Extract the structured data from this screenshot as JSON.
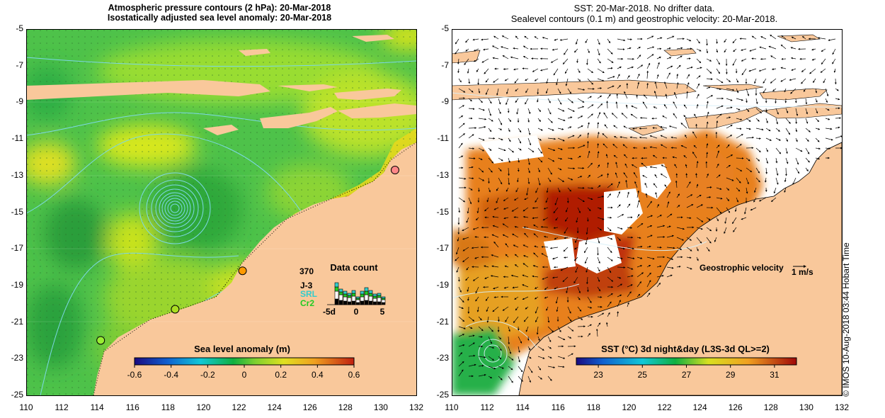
{
  "left_panel": {
    "title_line1": "Atmospheric pressure contours (2 hPa): 20-Mar-2018",
    "title_line2": "Isostatically adjusted sea level anomaly: 20-Mar-2018",
    "colorbar": {
      "label": "Sea level anomaly (m)",
      "ticks": [
        "-0.6",
        "-0.4",
        "-0.2",
        "0",
        "0.2",
        "0.4",
        "0.6"
      ],
      "range": [
        -0.6,
        0.6
      ]
    },
    "data_count": {
      "title": "Data count",
      "max_label": "370",
      "satellites": [
        "J-3",
        "SRL",
        "Cr2"
      ],
      "satellite_colors": [
        "#000000",
        "#33cccc",
        "#22cc22"
      ],
      "x_ticks": [
        "-5d",
        "0",
        "5"
      ]
    }
  },
  "right_panel": {
    "title_line1": "SST: 20-Mar-2018. No drifter data.",
    "title_line2": "Sealevel contours (0.1 m) and geostrophic velocity: 20-Mar-2018.",
    "velocity_legend": {
      "label": "Geostrophic velocity",
      "scale": "1 m/s"
    },
    "colorbar": {
      "label": "SST (°C) 3d night&day (L3S-3d QL>=2)",
      "ticks": [
        "23",
        "25",
        "27",
        "29",
        "31"
      ],
      "range": [
        22,
        32
      ]
    }
  },
  "axes": {
    "y_ticks": [
      "-5",
      "-7",
      "-9",
      "-11",
      "-13",
      "-15",
      "-17",
      "-19",
      "-21",
      "-23",
      "-25"
    ],
    "x_ticks": [
      "110",
      "112",
      "114",
      "116",
      "118",
      "120",
      "122",
      "124",
      "126",
      "128",
      "130",
      "132"
    ],
    "lat_range": [
      -25,
      -5
    ],
    "lon_range": [
      110,
      132
    ]
  },
  "tide_gauges": [
    {
      "lon": 130.8,
      "lat": -12.7,
      "color": "#ff8888"
    },
    {
      "lon": 122.2,
      "lat": -18.2,
      "color": "#ff9900"
    },
    {
      "lon": 118.4,
      "lat": -20.3,
      "color": "#aadd22"
    },
    {
      "lon": 114.2,
      "lat": -22.0,
      "color": "#99ee33"
    }
  ],
  "colors": {
    "land": "#f9c89b",
    "no_data": "#ffffff",
    "ocean_green": "#44c044",
    "sst_orange": "#e07010",
    "sst_red": "#b01000"
  },
  "credit": "© IMOS 10-Aug-2018 03:44 Hobart Time"
}
